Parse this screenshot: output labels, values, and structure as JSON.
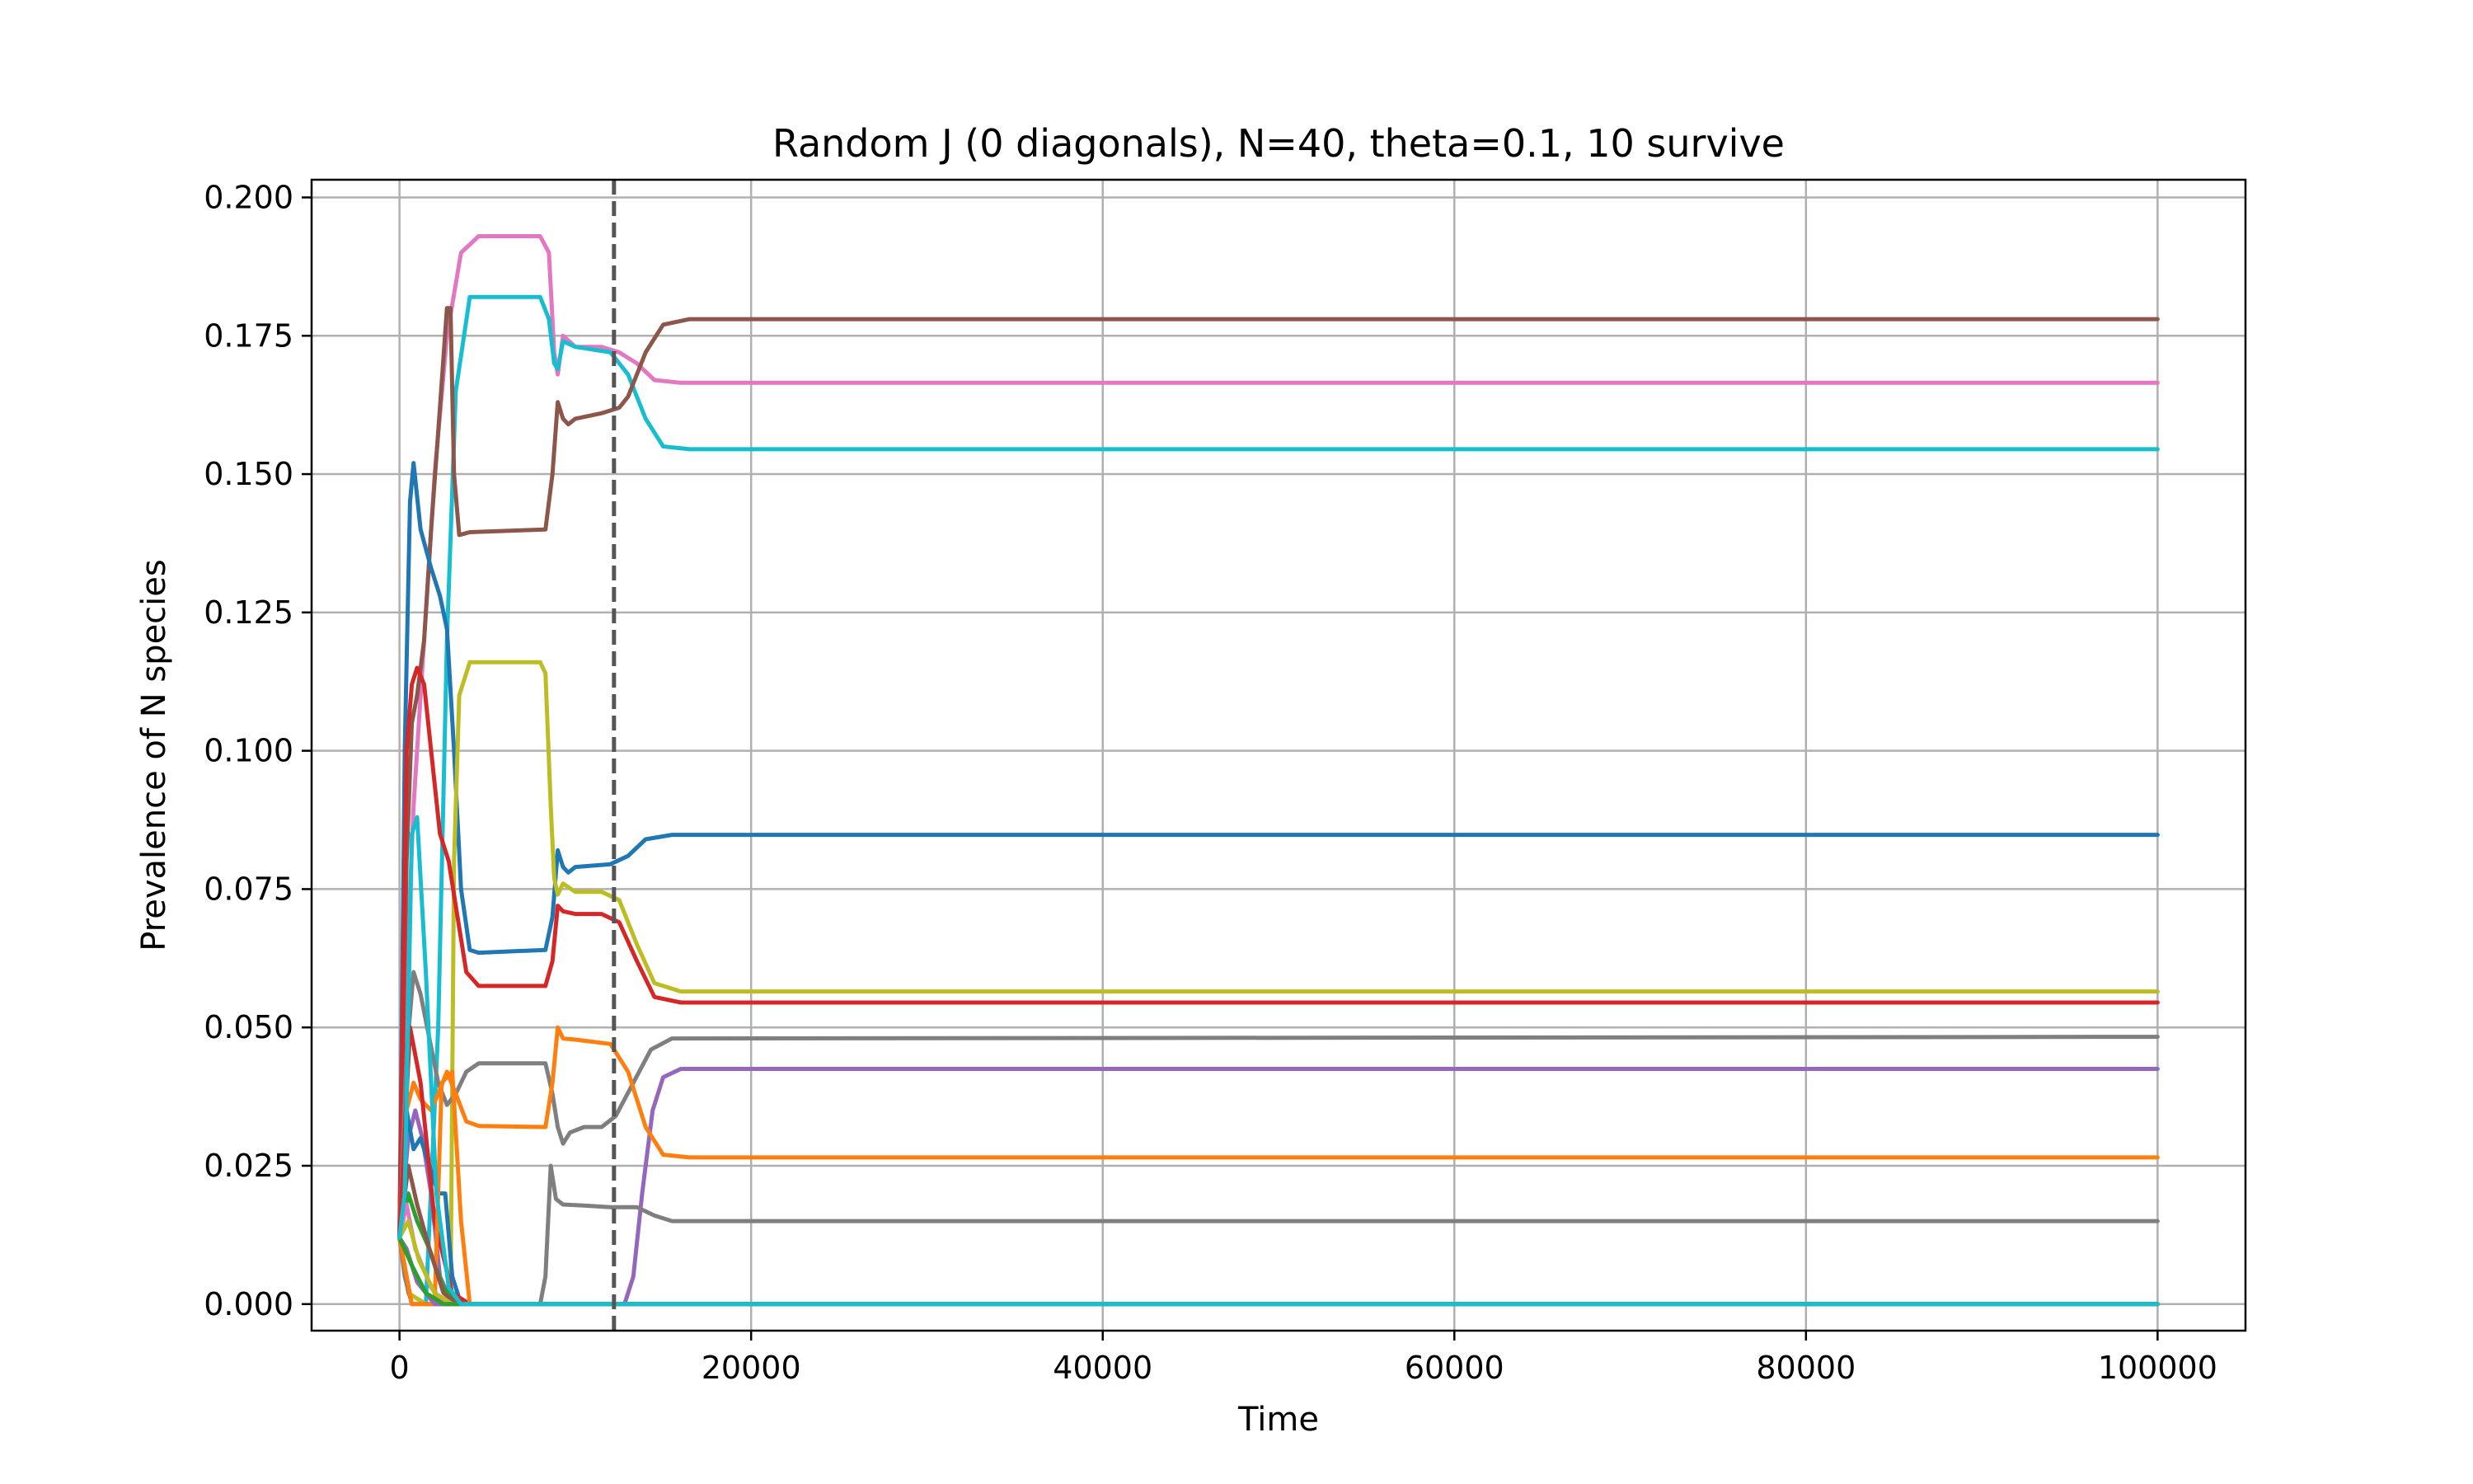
{
  "chart_data": {
    "type": "line",
    "title": "Random J (0 diagonals), N=40, theta=0.1, 10 survive",
    "xlabel": "Time",
    "ylabel": "Prevalence of N species",
    "xlim": [
      -5000,
      105000
    ],
    "ylim": [
      -0.0048,
      0.2032
    ],
    "xticks": [
      0,
      20000,
      40000,
      60000,
      80000,
      100000
    ],
    "xtick_labels": [
      "0",
      "20000",
      "40000",
      "60000",
      "80000",
      "100000"
    ],
    "yticks": [
      0.0,
      0.025,
      0.05,
      0.075,
      0.1,
      0.125,
      0.15,
      0.175,
      0.2
    ],
    "ytick_labels": [
      "0.000",
      "0.025",
      "0.050",
      "0.075",
      "0.100",
      "0.125",
      "0.150",
      "0.175",
      "0.200"
    ],
    "grid": true,
    "vline": {
      "x": 12200,
      "color": "#555555",
      "style": "dashed"
    },
    "series": [
      {
        "color": "#e377c2",
        "points": [
          [
            0,
            0.012
          ],
          [
            300,
            0.05
          ],
          [
            800,
            0.09
          ],
          [
            1400,
            0.12
          ],
          [
            2000,
            0.15
          ],
          [
            2700,
            0.175
          ],
          [
            3500,
            0.19
          ],
          [
            4500,
            0.193
          ],
          [
            8000,
            0.193
          ],
          [
            8500,
            0.19
          ],
          [
            8800,
            0.172
          ],
          [
            9000,
            0.168
          ],
          [
            9300,
            0.175
          ],
          [
            10000,
            0.173
          ],
          [
            11500,
            0.173
          ],
          [
            12500,
            0.172
          ],
          [
            13500,
            0.17
          ],
          [
            14500,
            0.167
          ],
          [
            16000,
            0.1665
          ],
          [
            100000,
            0.1665
          ]
        ]
      },
      {
        "color": "#17becf",
        "points": [
          [
            0,
            0.012
          ],
          [
            500,
            0.002
          ],
          [
            1500,
            0.0
          ],
          [
            2200,
            0.05
          ],
          [
            2700,
            0.12
          ],
          [
            3200,
            0.165
          ],
          [
            4000,
            0.182
          ],
          [
            8000,
            0.182
          ],
          [
            8500,
            0.178
          ],
          [
            8800,
            0.17
          ],
          [
            9000,
            0.169
          ],
          [
            9300,
            0.174
          ],
          [
            10000,
            0.173
          ],
          [
            12000,
            0.172
          ],
          [
            13000,
            0.168
          ],
          [
            14000,
            0.16
          ],
          [
            15000,
            0.155
          ],
          [
            16500,
            0.1545
          ],
          [
            100000,
            0.1545
          ]
        ]
      },
      {
        "color": "#8c564b",
        "points": [
          [
            0,
            0.012
          ],
          [
            400,
            0.08
          ],
          [
            700,
            0.105
          ],
          [
            1000,
            0.11
          ],
          [
            1400,
            0.12
          ],
          [
            1800,
            0.14
          ],
          [
            2300,
            0.162
          ],
          [
            2700,
            0.18
          ],
          [
            2900,
            0.18
          ],
          [
            3100,
            0.15
          ],
          [
            3400,
            0.139
          ],
          [
            4000,
            0.1395
          ],
          [
            8300,
            0.14
          ],
          [
            8700,
            0.15
          ],
          [
            9000,
            0.163
          ],
          [
            9300,
            0.16
          ],
          [
            9600,
            0.159
          ],
          [
            10000,
            0.16
          ],
          [
            11500,
            0.161
          ],
          [
            12500,
            0.162
          ],
          [
            13000,
            0.164
          ],
          [
            14000,
            0.172
          ],
          [
            15000,
            0.177
          ],
          [
            16500,
            0.178
          ],
          [
            100000,
            0.178
          ]
        ]
      },
      {
        "color": "#1f77b4",
        "points": [
          [
            0,
            0.012
          ],
          [
            300,
            0.1
          ],
          [
            600,
            0.145
          ],
          [
            800,
            0.152
          ],
          [
            1200,
            0.14
          ],
          [
            1800,
            0.133
          ],
          [
            2300,
            0.128
          ],
          [
            2700,
            0.122
          ],
          [
            3100,
            0.1
          ],
          [
            3500,
            0.075
          ],
          [
            4000,
            0.064
          ],
          [
            4500,
            0.0635
          ],
          [
            8300,
            0.064
          ],
          [
            8700,
            0.07
          ],
          [
            9000,
            0.082
          ],
          [
            9300,
            0.079
          ],
          [
            9600,
            0.078
          ],
          [
            10000,
            0.079
          ],
          [
            12000,
            0.0795
          ],
          [
            13000,
            0.081
          ],
          [
            14000,
            0.084
          ],
          [
            15500,
            0.0848
          ],
          [
            100000,
            0.0848
          ]
        ]
      },
      {
        "color": "#bcbd22",
        "points": [
          [
            0,
            0.012
          ],
          [
            500,
            0.002
          ],
          [
            1500,
            0.0
          ],
          [
            2900,
            0.0
          ],
          [
            3100,
            0.08
          ],
          [
            3400,
            0.11
          ],
          [
            4000,
            0.116
          ],
          [
            8000,
            0.116
          ],
          [
            8300,
            0.114
          ],
          [
            8600,
            0.09
          ],
          [
            8800,
            0.077
          ],
          [
            9000,
            0.074
          ],
          [
            9300,
            0.076
          ],
          [
            10000,
            0.0745
          ],
          [
            11500,
            0.0745
          ],
          [
            12500,
            0.073
          ],
          [
            13500,
            0.065
          ],
          [
            14500,
            0.058
          ],
          [
            16000,
            0.0565
          ],
          [
            100000,
            0.0565
          ]
        ]
      },
      {
        "color": "#d62728",
        "points": [
          [
            0,
            0.012
          ],
          [
            400,
            0.1
          ],
          [
            700,
            0.112
          ],
          [
            1000,
            0.115
          ],
          [
            1400,
            0.112
          ],
          [
            1800,
            0.1
          ],
          [
            2300,
            0.085
          ],
          [
            2800,
            0.08
          ],
          [
            3300,
            0.07
          ],
          [
            3800,
            0.06
          ],
          [
            4500,
            0.0575
          ],
          [
            8300,
            0.0575
          ],
          [
            8700,
            0.062
          ],
          [
            9000,
            0.072
          ],
          [
            9300,
            0.071
          ],
          [
            10000,
            0.0705
          ],
          [
            11500,
            0.0705
          ],
          [
            12500,
            0.069
          ],
          [
            13500,
            0.062
          ],
          [
            14500,
            0.0555
          ],
          [
            16000,
            0.0545
          ],
          [
            100000,
            0.0545
          ]
        ]
      },
      {
        "color": "#7f7f7f",
        "points": [
          [
            0,
            0.012
          ],
          [
            400,
            0.045
          ],
          [
            800,
            0.06
          ],
          [
            1200,
            0.056
          ],
          [
            1700,
            0.048
          ],
          [
            2200,
            0.04
          ],
          [
            2700,
            0.036
          ],
          [
            3200,
            0.038
          ],
          [
            3800,
            0.042
          ],
          [
            4500,
            0.0435
          ],
          [
            8300,
            0.0435
          ],
          [
            8700,
            0.038
          ],
          [
            9000,
            0.032
          ],
          [
            9300,
            0.029
          ],
          [
            9700,
            0.031
          ],
          [
            10500,
            0.032
          ],
          [
            11500,
            0.032
          ],
          [
            12300,
            0.034
          ],
          [
            13300,
            0.04
          ],
          [
            14300,
            0.046
          ],
          [
            15500,
            0.048
          ],
          [
            100000,
            0.0483
          ]
        ]
      },
      {
        "color": "#9467bd",
        "points": [
          [
            0,
            0.012
          ],
          [
            500,
            0.03
          ],
          [
            900,
            0.035
          ],
          [
            1300,
            0.03
          ],
          [
            1800,
            0.02
          ],
          [
            2300,
            0.005
          ],
          [
            3000,
            0.0
          ],
          [
            12800,
            0.0
          ],
          [
            13300,
            0.005
          ],
          [
            13800,
            0.02
          ],
          [
            14400,
            0.035
          ],
          [
            15000,
            0.041
          ],
          [
            16000,
            0.0425
          ],
          [
            100000,
            0.0425
          ]
        ]
      },
      {
        "color": "#ff7f0e",
        "points": [
          [
            0,
            0.012
          ],
          [
            400,
            0.035
          ],
          [
            800,
            0.04
          ],
          [
            1200,
            0.037
          ],
          [
            1800,
            0.035
          ],
          [
            2200,
            0.038
          ],
          [
            2700,
            0.042
          ],
          [
            3200,
            0.038
          ],
          [
            3800,
            0.033
          ],
          [
            4500,
            0.0322
          ],
          [
            8300,
            0.032
          ],
          [
            8700,
            0.04
          ],
          [
            9000,
            0.05
          ],
          [
            9300,
            0.048
          ],
          [
            10000,
            0.0478
          ],
          [
            12000,
            0.047
          ],
          [
            13000,
            0.042
          ],
          [
            14000,
            0.032
          ],
          [
            15000,
            0.027
          ],
          [
            16500,
            0.0265
          ],
          [
            100000,
            0.0265
          ]
        ]
      },
      {
        "color": "#7f7f7f",
        "points": [
          [
            0,
            0.012
          ],
          [
            300,
            0.005
          ],
          [
            700,
            0.0
          ],
          [
            8000,
            0.0
          ],
          [
            8300,
            0.005
          ],
          [
            8600,
            0.025
          ],
          [
            8900,
            0.019
          ],
          [
            9300,
            0.018
          ],
          [
            10500,
            0.0178
          ],
          [
            12000,
            0.0175
          ],
          [
            13500,
            0.0175
          ],
          [
            14500,
            0.016
          ],
          [
            15500,
            0.015
          ],
          [
            100000,
            0.015
          ]
        ]
      },
      {
        "color": "#1f77b4",
        "points": [
          [
            0,
            0.012
          ],
          [
            400,
            0.035
          ],
          [
            800,
            0.028
          ],
          [
            1200,
            0.03
          ],
          [
            1700,
            0.025
          ],
          [
            2200,
            0.02
          ],
          [
            2600,
            0.02
          ],
          [
            3000,
            0.005
          ],
          [
            3500,
            0.0
          ],
          [
            100000,
            0.0
          ]
        ]
      },
      {
        "color": "#2ca02c",
        "points": [
          [
            0,
            0.012
          ],
          [
            500,
            0.02
          ],
          [
            1000,
            0.015
          ],
          [
            1700,
            0.01
          ],
          [
            2500,
            0.003
          ],
          [
            3500,
            0.0
          ],
          [
            100000,
            0.0
          ]
        ]
      },
      {
        "color": "#d62728",
        "points": [
          [
            0,
            0.012
          ],
          [
            600,
            0.05
          ],
          [
            1200,
            0.04
          ],
          [
            2000,
            0.015
          ],
          [
            3000,
            0.002
          ],
          [
            4000,
            0.0
          ],
          [
            100000,
            0.0
          ]
        ]
      },
      {
        "color": "#ff7f0e",
        "points": [
          [
            0,
            0.012
          ],
          [
            700,
            0.0
          ],
          [
            2000,
            0.0
          ],
          [
            2400,
            0.04
          ],
          [
            3000,
            0.042
          ],
          [
            3500,
            0.015
          ],
          [
            4000,
            0.0
          ],
          [
            100000,
            0.0
          ]
        ]
      },
      {
        "color": "#8c564b",
        "points": [
          [
            0,
            0.012
          ],
          [
            500,
            0.025
          ],
          [
            1000,
            0.018
          ],
          [
            1700,
            0.01
          ],
          [
            2500,
            0.002
          ],
          [
            3300,
            0.0
          ],
          [
            100000,
            0.0
          ]
        ]
      },
      {
        "color": "#e377c2",
        "points": [
          [
            0,
            0.012
          ],
          [
            400,
            0.018
          ],
          [
            900,
            0.01
          ],
          [
            1800,
            0.003
          ],
          [
            2600,
            0.0
          ],
          [
            100000,
            0.0
          ]
        ]
      },
      {
        "color": "#bcbd22",
        "points": [
          [
            0,
            0.012
          ],
          [
            500,
            0.015
          ],
          [
            1100,
            0.008
          ],
          [
            2000,
            0.002
          ],
          [
            3000,
            0.0
          ],
          [
            100000,
            0.0
          ]
        ]
      },
      {
        "color": "#9467bd",
        "points": [
          [
            0,
            0.012
          ],
          [
            400,
            0.01
          ],
          [
            1000,
            0.004
          ],
          [
            2000,
            0.0
          ],
          [
            100000,
            0.0
          ]
        ]
      },
      {
        "color": "#2ca02c",
        "points": [
          [
            0,
            0.012
          ],
          [
            700,
            0.007
          ],
          [
            1500,
            0.002
          ],
          [
            2500,
            0.0
          ],
          [
            100000,
            0.0
          ]
        ]
      },
      {
        "color": "#17becf",
        "points": [
          [
            0,
            0.012
          ],
          [
            300,
            0.02
          ],
          [
            700,
            0.085
          ],
          [
            1000,
            0.088
          ],
          [
            1500,
            0.06
          ],
          [
            2100,
            0.02
          ],
          [
            2800,
            0.003
          ],
          [
            3500,
            0.0
          ],
          [
            100000,
            0.0
          ]
        ]
      }
    ]
  }
}
